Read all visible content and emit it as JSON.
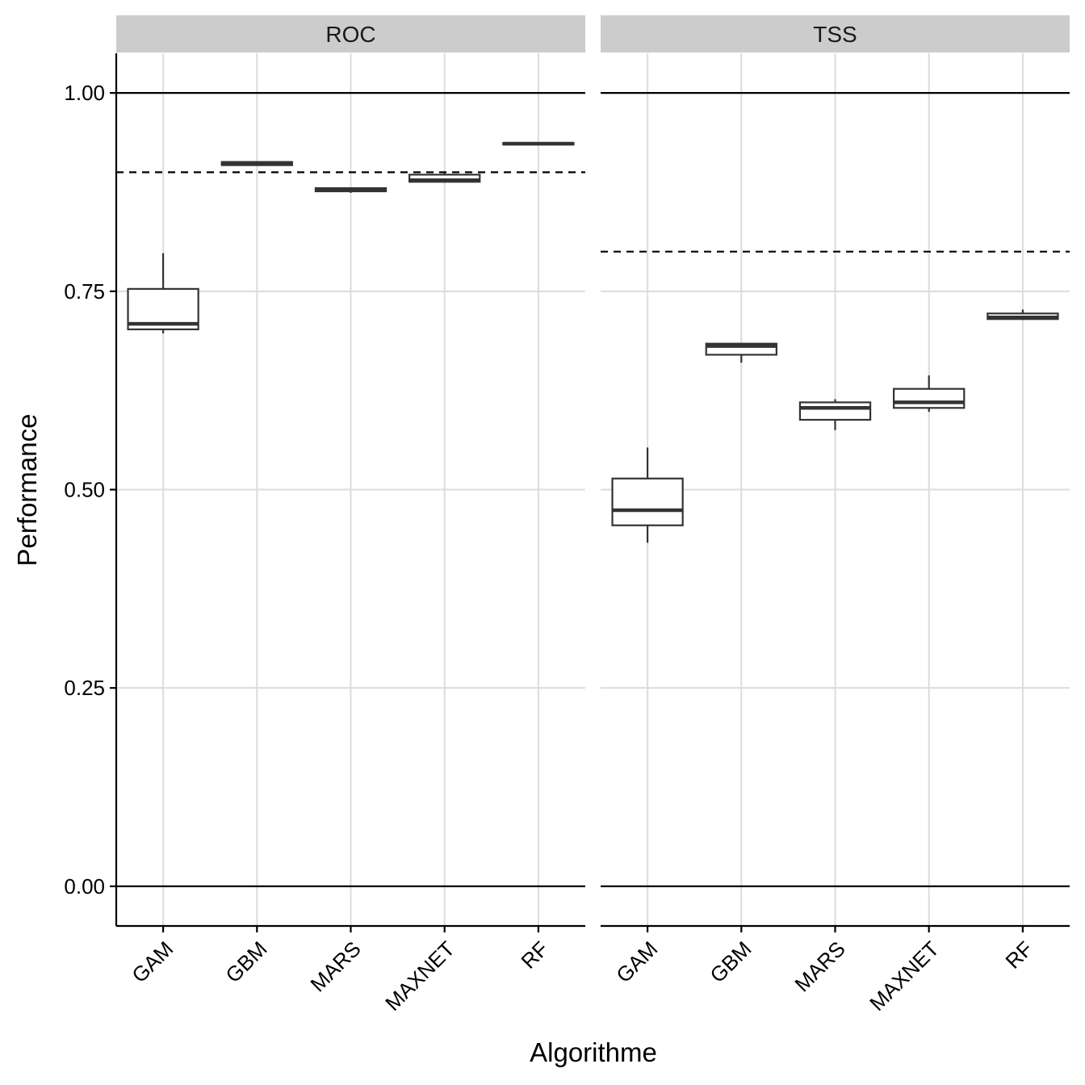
{
  "chart_data": {
    "type": "boxplot",
    "xlabel": "Algorithme",
    "ylabel": "Performance",
    "ylim": [
      -0.05,
      1.05
    ],
    "yticks": [
      0.0,
      0.25,
      0.5,
      0.75,
      1.0
    ],
    "ytick_labels": [
      "0.00",
      "0.25",
      "0.50",
      "0.75",
      "1.00"
    ],
    "categories": [
      "GAM",
      "GBM",
      "MARS",
      "MAXNET",
      "RF"
    ],
    "reference_lines_solid": [
      0.0,
      1.0
    ],
    "grid": true,
    "facets": [
      {
        "label": "ROC",
        "threshold": 0.9,
        "boxes": [
          {
            "category": "GAM",
            "min": 0.697,
            "q1": 0.702,
            "median": 0.709,
            "q3": 0.753,
            "max": 0.798
          },
          {
            "category": "GBM",
            "min": 0.909,
            "q1": 0.909,
            "median": 0.911,
            "q3": 0.913,
            "max": 0.914
          },
          {
            "category": "MARS",
            "min": 0.874,
            "q1": 0.876,
            "median": 0.878,
            "q3": 0.88,
            "max": 0.881
          },
          {
            "category": "MAXNET",
            "min": 0.887,
            "q1": 0.888,
            "median": 0.89,
            "q3": 0.897,
            "max": 0.899
          },
          {
            "category": "RF",
            "min": 0.935,
            "q1": 0.935,
            "median": 0.936,
            "q3": 0.937,
            "max": 0.938
          }
        ]
      },
      {
        "label": "TSS",
        "threshold": 0.8,
        "boxes": [
          {
            "category": "GAM",
            "min": 0.433,
            "q1": 0.455,
            "median": 0.474,
            "q3": 0.514,
            "max": 0.553
          },
          {
            "category": "GBM",
            "min": 0.66,
            "q1": 0.67,
            "median": 0.681,
            "q3": 0.684,
            "max": 0.685
          },
          {
            "category": "MARS",
            "min": 0.575,
            "q1": 0.588,
            "median": 0.603,
            "q3": 0.61,
            "max": 0.614
          },
          {
            "category": "MAXNET",
            "min": 0.598,
            "q1": 0.603,
            "median": 0.61,
            "q3": 0.627,
            "max": 0.644
          },
          {
            "category": "RF",
            "min": 0.714,
            "q1": 0.715,
            "median": 0.717,
            "q3": 0.722,
            "max": 0.727
          }
        ]
      }
    ]
  }
}
